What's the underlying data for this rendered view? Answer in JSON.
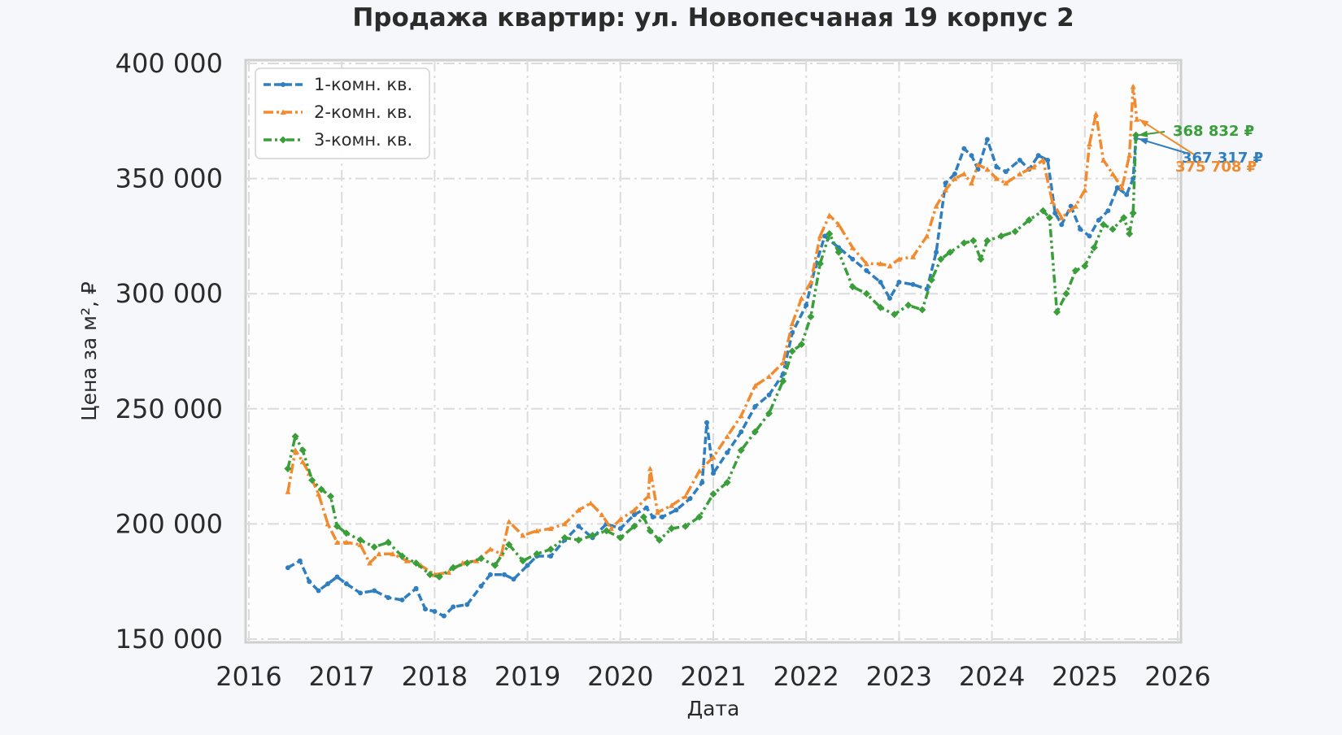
{
  "chart_data": {
    "type": "line",
    "title": "Продажа квартир: ул. Новопесчаная 19 корпус 2",
    "xlabel": "Дата",
    "ylabel": "Цена за м², ₽",
    "xlim": [
      2016.0,
      2026.0
    ],
    "ylim": [
      150000,
      400000
    ],
    "x_ticks": [
      2016,
      2017,
      2018,
      2019,
      2020,
      2021,
      2022,
      2023,
      2024,
      2025,
      2026
    ],
    "x_tick_labels": [
      "2016",
      "2017",
      "2018",
      "2019",
      "2020",
      "2021",
      "2022",
      "2023",
      "2024",
      "2025",
      "2026"
    ],
    "y_ticks": [
      150000,
      200000,
      250000,
      300000,
      350000,
      400000
    ],
    "y_tick_labels": [
      "150 000",
      "200 000",
      "250 000",
      "300 000",
      "350 000",
      "400 000"
    ],
    "grid": true,
    "legend": "top-left",
    "series": [
      {
        "name": "1-комн. кв.",
        "color": "#2f7ec0",
        "dash": "dashed",
        "x": [
          2016.42,
          2016.55,
          2016.65,
          2016.75,
          2016.85,
          2016.95,
          2017.05,
          2017.2,
          2017.35,
          2017.5,
          2017.65,
          2017.8,
          2017.9,
          2018.0,
          2018.1,
          2018.2,
          2018.35,
          2018.5,
          2018.6,
          2018.75,
          2018.85,
          2019.0,
          2019.1,
          2019.25,
          2019.4,
          2019.55,
          2019.7,
          2019.85,
          2020.0,
          2020.15,
          2020.28,
          2020.35,
          2020.45,
          2020.6,
          2020.75,
          2020.88,
          2020.93,
          2021.0,
          2021.15,
          2021.3,
          2021.45,
          2021.6,
          2021.75,
          2021.85,
          2022.0,
          2022.1,
          2022.2,
          2022.35,
          2022.5,
          2022.65,
          2022.8,
          2022.9,
          2023.0,
          2023.15,
          2023.3,
          2023.4,
          2023.5,
          2023.6,
          2023.7,
          2023.78,
          2023.85,
          2023.95,
          2024.05,
          2024.15,
          2024.3,
          2024.4,
          2024.5,
          2024.6,
          2024.68,
          2024.75,
          2024.85,
          2024.95,
          2025.05,
          2025.15,
          2025.25,
          2025.35,
          2025.45,
          2025.52,
          2025.55
        ],
        "values": [
          181000,
          184000,
          175000,
          171000,
          174000,
          177000,
          174000,
          170000,
          171000,
          168000,
          167000,
          172000,
          163000,
          162000,
          160000,
          164000,
          165000,
          173000,
          178000,
          178000,
          176000,
          182000,
          186000,
          186000,
          193000,
          199000,
          194000,
          200000,
          198000,
          204000,
          207000,
          203000,
          203000,
          206000,
          211000,
          218000,
          244000,
          222000,
          231000,
          240000,
          251000,
          256000,
          265000,
          283000,
          295000,
          312000,
          325000,
          320000,
          315000,
          310000,
          305000,
          298000,
          305000,
          304000,
          302000,
          318000,
          348000,
          352000,
          363000,
          360000,
          354000,
          367000,
          355000,
          353000,
          358000,
          354000,
          360000,
          358000,
          335000,
          330000,
          338000,
          328000,
          325000,
          332000,
          336000,
          346000,
          343000,
          350000,
          367317
        ]
      },
      {
        "name": "2-комн. кв.",
        "color": "#f28a2e",
        "dash": "dashdot",
        "x": [
          2016.42,
          2016.5,
          2016.58,
          2016.65,
          2016.75,
          2016.85,
          2016.95,
          2017.05,
          2017.2,
          2017.3,
          2017.4,
          2017.55,
          2017.7,
          2017.85,
          2018.0,
          2018.15,
          2018.3,
          2018.45,
          2018.6,
          2018.72,
          2018.8,
          2018.95,
          2019.1,
          2019.25,
          2019.4,
          2019.55,
          2019.68,
          2019.8,
          2019.9,
          2020.0,
          2020.15,
          2020.3,
          2020.32,
          2020.4,
          2020.55,
          2020.7,
          2020.85,
          2021.0,
          2021.15,
          2021.3,
          2021.45,
          2021.6,
          2021.75,
          2021.85,
          2021.95,
          2022.05,
          2022.15,
          2022.25,
          2022.35,
          2022.5,
          2022.65,
          2022.8,
          2022.9,
          2023.0,
          2023.15,
          2023.3,
          2023.4,
          2023.5,
          2023.6,
          2023.7,
          2023.78,
          2023.85,
          2023.95,
          2024.05,
          2024.15,
          2024.3,
          2024.45,
          2024.55,
          2024.65,
          2024.75,
          2024.9,
          2025.0,
          2025.05,
          2025.12,
          2025.2,
          2025.3,
          2025.4,
          2025.48,
          2025.52,
          2025.56
        ],
        "values": [
          214000,
          232000,
          227000,
          222000,
          213000,
          200000,
          192000,
          192000,
          191000,
          183000,
          187000,
          187000,
          184000,
          182000,
          178000,
          179000,
          183000,
          184000,
          189000,
          187000,
          201000,
          195000,
          197000,
          198000,
          200000,
          206000,
          209000,
          204000,
          198000,
          202000,
          206000,
          212000,
          224000,
          205000,
          208000,
          212000,
          223000,
          229000,
          238000,
          247000,
          260000,
          264000,
          270000,
          287000,
          298000,
          305000,
          325000,
          334000,
          330000,
          320000,
          313000,
          313000,
          312000,
          315000,
          316000,
          325000,
          338000,
          345000,
          350000,
          352000,
          348000,
          356000,
          354000,
          350000,
          348000,
          352000,
          355000,
          358000,
          340000,
          333000,
          338000,
          345000,
          365000,
          378000,
          358000,
          352000,
          346000,
          360000,
          390000,
          375708
        ]
      },
      {
        "name": "3-комн. кв.",
        "color": "#3a9e3a",
        "dash": "dashdotdot",
        "x": [
          2016.42,
          2016.5,
          2016.58,
          2016.68,
          2016.78,
          2016.88,
          2016.95,
          2017.05,
          2017.2,
          2017.35,
          2017.5,
          2017.65,
          2017.8,
          2017.95,
          2018.05,
          2018.2,
          2018.35,
          2018.5,
          2018.65,
          2018.8,
          2018.95,
          2019.1,
          2019.25,
          2019.4,
          2019.55,
          2019.7,
          2019.85,
          2020.0,
          2020.15,
          2020.25,
          2020.32,
          2020.42,
          2020.55,
          2020.7,
          2020.85,
          2021.0,
          2021.15,
          2021.3,
          2021.45,
          2021.6,
          2021.75,
          2021.85,
          2021.95,
          2022.05,
          2022.15,
          2022.25,
          2022.35,
          2022.5,
          2022.65,
          2022.8,
          2022.95,
          2023.1,
          2023.25,
          2023.35,
          2023.45,
          2023.55,
          2023.7,
          2023.8,
          2023.88,
          2023.95,
          2024.1,
          2024.25,
          2024.4,
          2024.55,
          2024.62,
          2024.7,
          2024.8,
          2024.9,
          2025.0,
          2025.1,
          2025.2,
          2025.3,
          2025.42,
          2025.48,
          2025.52,
          2025.55
        ],
        "values": [
          224000,
          238000,
          232000,
          219000,
          215000,
          212000,
          199000,
          196000,
          193000,
          190000,
          192000,
          186000,
          183000,
          178000,
          177000,
          181000,
          183000,
          185000,
          182000,
          191000,
          184000,
          187000,
          189000,
          194000,
          193000,
          195000,
          197000,
          194000,
          199000,
          203000,
          197000,
          193000,
          198000,
          199000,
          203000,
          213000,
          218000,
          232000,
          240000,
          248000,
          262000,
          275000,
          278000,
          290000,
          313000,
          326000,
          318000,
          303000,
          300000,
          294000,
          291000,
          295000,
          293000,
          306000,
          315000,
          318000,
          322000,
          323000,
          315000,
          323000,
          325000,
          327000,
          332000,
          336000,
          333000,
          292000,
          300000,
          310000,
          312000,
          320000,
          330000,
          328000,
          333000,
          326000,
          335000,
          368832
        ]
      }
    ],
    "end_labels": [
      {
        "series": "3-комн. кв.",
        "text": "368 832 ₽",
        "color": "#3a9e3a"
      },
      {
        "series": "1-комн. кв.",
        "text": "367 317 ₽",
        "color": "#2f7ec0"
      },
      {
        "series": "2-комн. кв.",
        "text": "375 708 ₽",
        "color": "#f28a2e"
      }
    ]
  }
}
